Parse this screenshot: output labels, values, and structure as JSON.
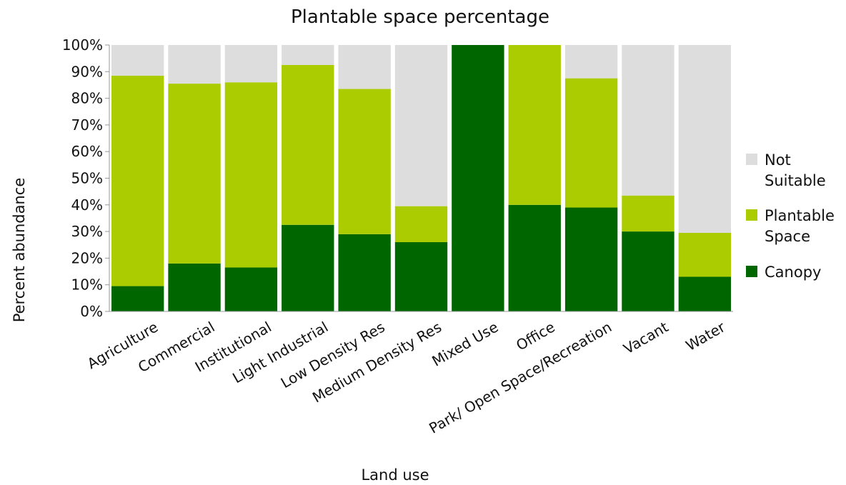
{
  "chart_data": {
    "type": "bar",
    "stacked": true,
    "title": "Plantable space percentage",
    "xlabel": "Land use",
    "ylabel": "Percent abundance",
    "ylim": [
      0,
      100
    ],
    "yticks": [
      "0%",
      "10%",
      "20%",
      "30%",
      "40%",
      "50%",
      "60%",
      "70%",
      "80%",
      "90%",
      "100%"
    ],
    "categories": [
      "Agriculture",
      "Commercial",
      "Institutional",
      "Light Industrial",
      "Low Density Res",
      "Medium Density Res",
      "Mixed Use",
      "Office",
      "Park/ Open Space/Recreation",
      "Vacant",
      "Water"
    ],
    "series": [
      {
        "name": "Canopy",
        "color": "#006600",
        "values": [
          9.5,
          18,
          16.5,
          32.5,
          29,
          26,
          100,
          40,
          39,
          30,
          13
        ]
      },
      {
        "name": "Plantable Space",
        "color": "#aacc00",
        "values": [
          79,
          67.5,
          69.5,
          60,
          54.5,
          13.5,
          0,
          60,
          48.5,
          13.5,
          16.5
        ]
      },
      {
        "name": "Not Suitable",
        "color": "#dddddd",
        "values": [
          11.5,
          14.5,
          14,
          7.5,
          16.5,
          60.5,
          0,
          0,
          12.5,
          56.5,
          70.5
        ]
      }
    ],
    "legend": {
      "position": "right",
      "entries": [
        {
          "lines": [
            "Not",
            "Suitable"
          ],
          "color": "#dddddd"
        },
        {
          "lines": [
            "Plantable",
            "Space"
          ],
          "color": "#aacc00"
        },
        {
          "lines": [
            "Canopy"
          ],
          "color": "#006600"
        }
      ]
    },
    "grid": false
  }
}
